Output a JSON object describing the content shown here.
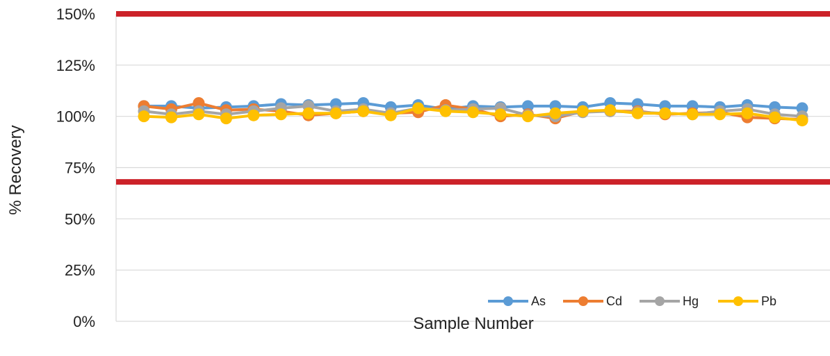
{
  "chart_data": {
    "type": "line",
    "title": "",
    "xlabel": "Sample Number",
    "ylabel": "% Recovery",
    "ylim": [
      0,
      150
    ],
    "yticks": [
      0,
      25,
      50,
      75,
      100,
      125,
      150
    ],
    "ytick_labels": [
      "0%",
      "25%",
      "50%",
      "75%",
      "100%",
      "125%",
      "150%"
    ],
    "grid": true,
    "legend_position": "bottom-right",
    "x": [
      1,
      2,
      3,
      4,
      5,
      6,
      7,
      8,
      9,
      10,
      11,
      12,
      13,
      14,
      15,
      16,
      17,
      18,
      19,
      20,
      21,
      22,
      23,
      24,
      25
    ],
    "limit_lines": [
      {
        "value": 150,
        "color": "#cc2229"
      },
      {
        "value": 68,
        "color": "#cc2229"
      }
    ],
    "series": [
      {
        "name": "As",
        "color": "#5b9bd5",
        "values": [
          105,
          105,
          104,
          104.5,
          105,
          106,
          105.5,
          106,
          106.5,
          104.5,
          105.5,
          103.5,
          105,
          104.5,
          105,
          105,
          104.5,
          106.5,
          106,
          105,
          105,
          104.5,
          105.5,
          104.5,
          104
        ]
      },
      {
        "name": "Cd",
        "color": "#ed7d31",
        "values": [
          105,
          103.5,
          106.5,
          103,
          103.5,
          102.5,
          100.5,
          101.5,
          102.5,
          101.5,
          102,
          105.5,
          103.5,
          100,
          101,
          99,
          102.5,
          102.5,
          102.5,
          101,
          101.5,
          102,
          99.5,
          99,
          98.5
        ]
      },
      {
        "name": "Hg",
        "color": "#a5a5a5",
        "values": [
          102.5,
          101,
          102.5,
          101,
          102.5,
          104,
          105,
          102.5,
          103.5,
          101.5,
          104,
          103,
          103.5,
          104,
          100.5,
          100,
          102,
          102.5,
          102,
          101.5,
          101,
          102.5,
          103.5,
          101,
          100
        ]
      },
      {
        "name": "Pb",
        "color": "#ffc000",
        "values": [
          100,
          99.5,
          101,
          99,
          100.5,
          101,
          101.5,
          101.5,
          102.5,
          100.5,
          104,
          102.5,
          102,
          101,
          100,
          101.5,
          102.5,
          103,
          101.5,
          101.5,
          101,
          101,
          101.5,
          99.5,
          98
        ]
      }
    ]
  }
}
